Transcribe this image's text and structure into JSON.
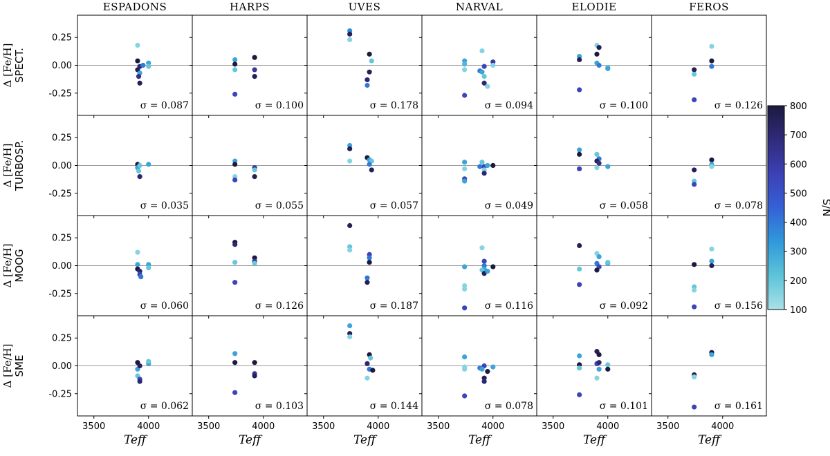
{
  "chart_data": {
    "type": "scatter",
    "columns": [
      "ESPADONS",
      "HARPS",
      "UVES",
      "NARVAL",
      "ELODIE",
      "FEROS"
    ],
    "rows": [
      {
        "ylabel_prefix": "Δ [Fe/H]",
        "label": "SPECT."
      },
      {
        "ylabel_prefix": "Δ [Fe/H]",
        "label": "TURBOSP."
      },
      {
        "ylabel_prefix": "Δ [Fe/H]",
        "label": "MOOG"
      },
      {
        "ylabel_prefix": "Δ [Fe/H]",
        "label": "SME"
      }
    ],
    "xlabel": "Teff",
    "xlim": [
      3350,
      4400
    ],
    "ylim": [
      -0.45,
      0.45
    ],
    "xticks": [
      "3500",
      "4000"
    ],
    "yticks": [
      "0.25",
      "0.00",
      "-0.25"
    ],
    "ytick_values": [
      0.25,
      0.0,
      -0.25
    ],
    "xtick_values": [
      3500,
      4000
    ],
    "sigma": [
      [
        "σ = 0.087",
        "σ = 0.100",
        "σ = 0.178",
        "σ = 0.094",
        "σ = 0.100",
        "σ = 0.126"
      ],
      [
        "σ = 0.035",
        "σ = 0.055",
        "σ = 0.057",
        "σ = 0.049",
        "σ = 0.058",
        "σ = 0.078"
      ],
      [
        "σ = 0.060",
        "σ = 0.126",
        "σ = 0.187",
        "σ = 0.116",
        "σ = 0.092",
        "σ = 0.156"
      ],
      [
        "σ = 0.062",
        "σ = 0.103",
        "σ = 0.144",
        "σ = 0.078",
        "σ = 0.101",
        "σ = 0.161"
      ]
    ],
    "colorbar": {
      "label": "S/N",
      "range": [
        100,
        800
      ],
      "ticks": [
        "800",
        "700",
        "600",
        "500",
        "400",
        "300",
        "200",
        "100"
      ],
      "colors": [
        "#a8e1e8",
        "#5cc3d8",
        "#2f97da",
        "#3561d6",
        "#3c40b4",
        "#2f2a78",
        "#1c1a3e"
      ]
    },
    "points": [
      [
        [
          [
            3900,
            0.18,
            150
          ],
          [
            3900,
            0.04,
            800
          ],
          [
            3920,
            -0.01,
            700
          ],
          [
            3900,
            -0.04,
            750
          ],
          [
            3920,
            -0.07,
            300
          ],
          [
            3910,
            -0.1,
            650
          ],
          [
            3920,
            -0.16,
            750
          ],
          [
            4000,
            0.02,
            300
          ],
          [
            4000,
            -0.01,
            200
          ],
          [
            3950,
            0.0,
            400
          ]
        ],
        [
          [
            3740,
            0.05,
            300
          ],
          [
            3740,
            0.01,
            800
          ],
          [
            3740,
            -0.04,
            200
          ],
          [
            3740,
            -0.26,
            550
          ],
          [
            3920,
            0.07,
            800
          ],
          [
            3920,
            -0.04,
            600
          ],
          [
            3920,
            -0.1,
            750
          ]
        ],
        [
          [
            3740,
            0.31,
            350
          ],
          [
            3740,
            0.28,
            750
          ],
          [
            3740,
            0.23,
            150
          ],
          [
            3920,
            0.1,
            800
          ],
          [
            3940,
            0.04,
            200
          ],
          [
            3920,
            -0.06,
            750
          ],
          [
            3900,
            -0.13,
            700
          ],
          [
            3900,
            -0.18,
            400
          ]
        ],
        [
          [
            3740,
            0.04,
            300
          ],
          [
            3740,
            0.01,
            250
          ],
          [
            3740,
            -0.04,
            150
          ],
          [
            3740,
            -0.27,
            550
          ],
          [
            3880,
            -0.05,
            400
          ],
          [
            3900,
            0.13,
            150
          ],
          [
            3920,
            -0.01,
            550
          ],
          [
            3900,
            -0.06,
            300
          ],
          [
            3920,
            -0.1,
            200
          ],
          [
            3920,
            -0.16,
            700
          ],
          [
            3950,
            -0.19,
            150
          ],
          [
            4000,
            0.03,
            600
          ],
          [
            4000,
            0.0,
            150
          ]
        ],
        [
          [
            3740,
            0.08,
            300
          ],
          [
            3740,
            0.05,
            750
          ],
          [
            3740,
            -0.22,
            550
          ],
          [
            3900,
            0.18,
            150
          ],
          [
            3920,
            0.16,
            750
          ],
          [
            3900,
            0.1,
            800
          ],
          [
            3900,
            0.02,
            300
          ],
          [
            3920,
            0.0,
            400
          ],
          [
            4000,
            -0.02,
            200
          ],
          [
            4000,
            -0.03,
            300
          ]
        ],
        [
          [
            3740,
            -0.04,
            750
          ],
          [
            3740,
            -0.08,
            200
          ],
          [
            3740,
            -0.31,
            550
          ],
          [
            3900,
            0.17,
            150
          ],
          [
            3900,
            0.04,
            800
          ],
          [
            3900,
            -0.01,
            400
          ]
        ]
      ],
      [
        [
          [
            3900,
            0.01,
            800
          ],
          [
            3900,
            -0.02,
            300
          ],
          [
            3910,
            -0.05,
            200
          ],
          [
            3920,
            -0.1,
            700
          ],
          [
            3920,
            0.0,
            200
          ],
          [
            4000,
            0.01,
            300
          ]
        ],
        [
          [
            3740,
            0.04,
            300
          ],
          [
            3740,
            0.01,
            800
          ],
          [
            3740,
            -0.1,
            150
          ],
          [
            3740,
            -0.13,
            550
          ],
          [
            3920,
            -0.02,
            600
          ],
          [
            3920,
            -0.04,
            200
          ],
          [
            3920,
            -0.1,
            750
          ]
        ],
        [
          [
            3740,
            0.18,
            300
          ],
          [
            3740,
            0.15,
            750
          ],
          [
            3740,
            0.04,
            150
          ],
          [
            3900,
            0.07,
            800
          ],
          [
            3920,
            0.05,
            300
          ],
          [
            3940,
            0.04,
            200
          ],
          [
            3920,
            0.01,
            400
          ],
          [
            3940,
            -0.04,
            750
          ]
        ],
        [
          [
            3740,
            0.03,
            300
          ],
          [
            3740,
            -0.03,
            150
          ],
          [
            3740,
            -0.12,
            550
          ],
          [
            3740,
            -0.14,
            300
          ],
          [
            3880,
            -0.01,
            400
          ],
          [
            3900,
            0.03,
            200
          ],
          [
            3920,
            -0.01,
            550
          ],
          [
            3920,
            -0.04,
            150
          ],
          [
            3920,
            -0.07,
            700
          ],
          [
            3950,
            0.0,
            300
          ],
          [
            4000,
            0.0,
            800
          ]
        ],
        [
          [
            3740,
            0.14,
            300
          ],
          [
            3740,
            0.1,
            800
          ],
          [
            3740,
            -0.03,
            550
          ],
          [
            3900,
            0.1,
            200
          ],
          [
            3920,
            0.06,
            400
          ],
          [
            3900,
            0.04,
            750
          ],
          [
            3920,
            0.02,
            650
          ],
          [
            3900,
            -0.02,
            150
          ],
          [
            4000,
            -0.01,
            300
          ]
        ],
        [
          [
            3740,
            -0.04,
            750
          ],
          [
            3740,
            -0.14,
            200
          ],
          [
            3740,
            -0.17,
            550
          ],
          [
            3900,
            0.05,
            800
          ],
          [
            3900,
            0.01,
            300
          ],
          [
            3900,
            -0.01,
            150
          ]
        ]
      ],
      [
        [
          [
            3900,
            0.12,
            150
          ],
          [
            3900,
            0.01,
            300
          ],
          [
            3900,
            -0.03,
            800
          ],
          [
            3920,
            -0.05,
            700
          ],
          [
            3920,
            -0.08,
            550
          ],
          [
            3930,
            -0.1,
            400
          ],
          [
            4000,
            0.01,
            300
          ],
          [
            4000,
            -0.02,
            200
          ]
        ],
        [
          [
            3740,
            0.21,
            800
          ],
          [
            3740,
            0.19,
            700
          ],
          [
            3740,
            0.03,
            200
          ],
          [
            3740,
            -0.15,
            550
          ],
          [
            3920,
            0.07,
            800
          ],
          [
            3920,
            0.04,
            600
          ],
          [
            3920,
            0.02,
            200
          ]
        ],
        [
          [
            3740,
            0.36,
            750
          ],
          [
            3740,
            0.17,
            200
          ],
          [
            3740,
            0.14,
            150
          ],
          [
            3920,
            0.1,
            550
          ],
          [
            3920,
            0.07,
            400
          ],
          [
            3920,
            0.03,
            800
          ],
          [
            3900,
            -0.11,
            400
          ],
          [
            3900,
            -0.15,
            750
          ]
        ],
        [
          [
            3740,
            -0.01,
            300
          ],
          [
            3740,
            -0.18,
            150
          ],
          [
            3740,
            -0.21,
            150
          ],
          [
            3740,
            -0.38,
            550
          ],
          [
            3900,
            0.16,
            150
          ],
          [
            3920,
            0.04,
            550
          ],
          [
            3920,
            0.0,
            400
          ],
          [
            3920,
            -0.03,
            300
          ],
          [
            3900,
            -0.04,
            200
          ],
          [
            3920,
            -0.07,
            750
          ],
          [
            3950,
            -0.05,
            300
          ],
          [
            4000,
            -0.01,
            800
          ]
        ],
        [
          [
            3740,
            0.18,
            750
          ],
          [
            3740,
            -0.03,
            200
          ],
          [
            3740,
            -0.17,
            550
          ],
          [
            3900,
            0.11,
            150
          ],
          [
            3920,
            0.08,
            300
          ],
          [
            3900,
            0.02,
            400
          ],
          [
            3920,
            -0.01,
            550
          ],
          [
            3900,
            -0.04,
            800
          ],
          [
            4000,
            0.02,
            300
          ],
          [
            4000,
            0.03,
            200
          ]
        ],
        [
          [
            3740,
            0.01,
            800
          ],
          [
            3740,
            -0.19,
            200
          ],
          [
            3740,
            -0.22,
            150
          ],
          [
            3740,
            -0.37,
            550
          ],
          [
            3900,
            0.15,
            150
          ],
          [
            3900,
            0.04,
            300
          ],
          [
            3900,
            0.0,
            750
          ]
        ]
      ],
      [
        [
          [
            3900,
            0.03,
            800
          ],
          [
            3900,
            -0.03,
            300
          ],
          [
            3900,
            -0.09,
            200
          ],
          [
            3920,
            -0.12,
            550
          ],
          [
            3920,
            -0.14,
            700
          ],
          [
            3920,
            0.0,
            750
          ],
          [
            4000,
            0.02,
            300
          ],
          [
            4000,
            0.04,
            200
          ]
        ],
        [
          [
            3740,
            0.11,
            300
          ],
          [
            3740,
            0.03,
            800
          ],
          [
            3740,
            -0.24,
            550
          ],
          [
            3920,
            0.03,
            800
          ],
          [
            3920,
            -0.07,
            600
          ],
          [
            3920,
            -0.09,
            750
          ]
        ],
        [
          [
            3740,
            0.36,
            300
          ],
          [
            3740,
            0.29,
            750
          ],
          [
            3740,
            0.26,
            150
          ],
          [
            3920,
            0.1,
            800
          ],
          [
            3930,
            0.07,
            200
          ],
          [
            3900,
            0.02,
            700
          ],
          [
            3920,
            -0.03,
            400
          ],
          [
            3900,
            -0.11,
            150
          ],
          [
            3950,
            -0.04,
            800
          ]
        ],
        [
          [
            3740,
            0.08,
            300
          ],
          [
            3740,
            -0.01,
            150
          ],
          [
            3740,
            -0.03,
            150
          ],
          [
            3740,
            -0.27,
            550
          ],
          [
            3880,
            -0.02,
            400
          ],
          [
            3920,
            0.0,
            550
          ],
          [
            3900,
            -0.03,
            300
          ],
          [
            3920,
            -0.11,
            750
          ],
          [
            3920,
            -0.14,
            700
          ],
          [
            3950,
            -0.05,
            800
          ],
          [
            4000,
            -0.01,
            300
          ]
        ],
        [
          [
            3740,
            0.09,
            300
          ],
          [
            3740,
            0.01,
            800
          ],
          [
            3740,
            -0.02,
            200
          ],
          [
            3740,
            -0.26,
            550
          ],
          [
            3900,
            0.13,
            750
          ],
          [
            3920,
            0.1,
            800
          ],
          [
            3900,
            0.02,
            550
          ],
          [
            3920,
            0.03,
            700
          ],
          [
            3900,
            -0.11,
            150
          ],
          [
            3920,
            -0.03,
            300
          ],
          [
            4000,
            0.01,
            200
          ],
          [
            4000,
            -0.03,
            800
          ]
        ],
        [
          [
            3740,
            -0.08,
            750
          ],
          [
            3740,
            -0.1,
            150
          ],
          [
            3740,
            -0.37,
            550
          ],
          [
            3900,
            0.12,
            800
          ],
          [
            3900,
            0.1,
            300
          ]
        ]
      ]
    ]
  }
}
